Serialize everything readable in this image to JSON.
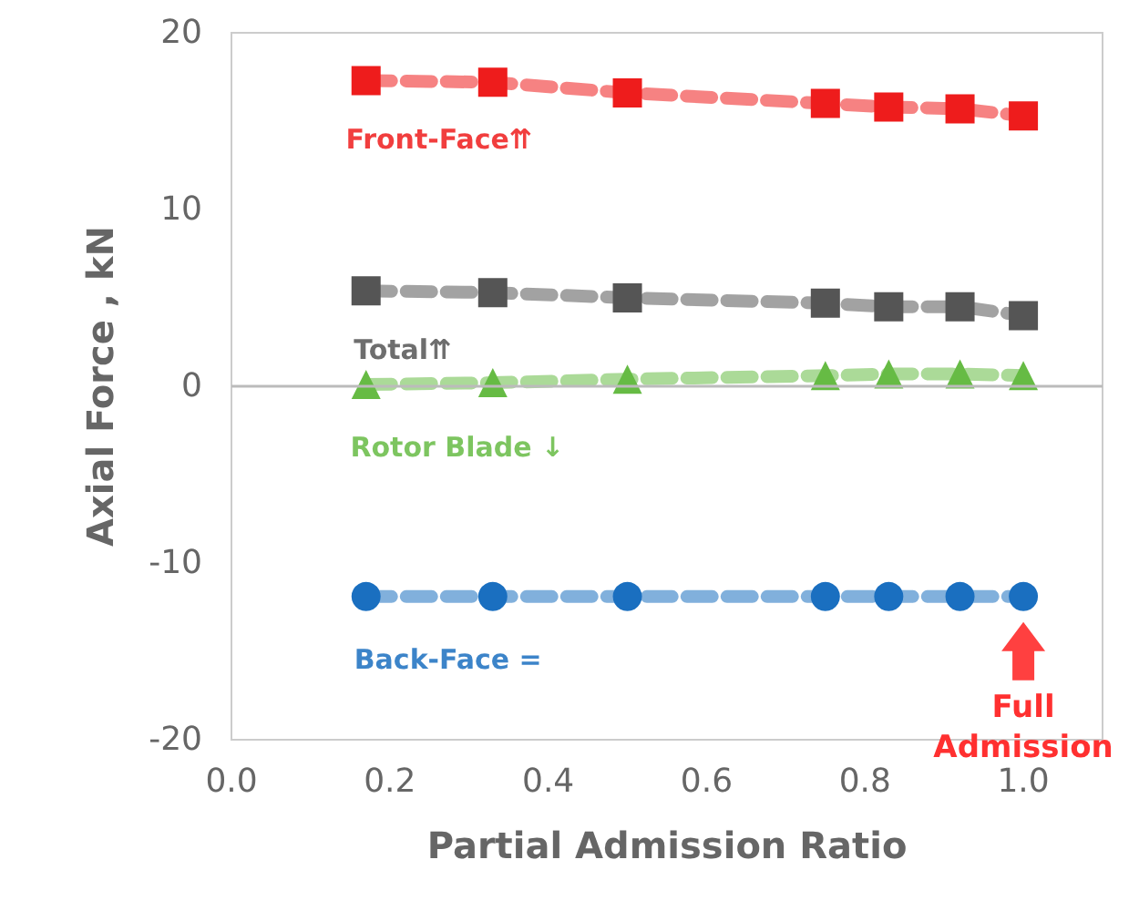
{
  "chart_data": {
    "type": "line",
    "xlabel": "Partial Admission Ratio",
    "ylabel": "Axial Force , kN",
    "x": [
      0.17,
      0.33,
      0.5,
      0.75,
      0.83,
      0.92,
      1.0
    ],
    "series": [
      {
        "name": "Front-Face⇈",
        "color": "#ee1c1c",
        "marker": "square",
        "values": [
          17.3,
          17.2,
          16.6,
          16.0,
          15.8,
          15.7,
          15.3
        ]
      },
      {
        "name": "Total⇈",
        "color": "#555555",
        "marker": "square",
        "values": [
          5.4,
          5.3,
          5.0,
          4.7,
          4.5,
          4.5,
          4.0
        ]
      },
      {
        "name": "Rotor Blade ↓",
        "color": "#66bb44",
        "marker": "triangle",
        "values": [
          0.1,
          0.2,
          0.4,
          0.6,
          0.7,
          0.7,
          0.6
        ]
      },
      {
        "name": "Back-Face =",
        "color": "#1a6fc0",
        "marker": "circle",
        "values": [
          -11.9,
          -11.9,
          -11.9,
          -11.9,
          -11.9,
          -11.9,
          -11.9
        ]
      }
    ],
    "line_style": "dashed",
    "xlim": [
      0,
      1.1
    ],
    "xticks": [
      {
        "value": 0,
        "label": "0.0"
      },
      {
        "value": 0.2,
        "label": "0.2"
      },
      {
        "value": 0.4,
        "label": "0.4"
      },
      {
        "value": 0.6,
        "label": "0.6"
      },
      {
        "value": 0.8,
        "label": "0.8"
      },
      {
        "value": 1.0,
        "label": "1.0"
      }
    ],
    "ylim": [
      -20,
      20
    ],
    "yticks": [
      -20,
      -10,
      0,
      10,
      20
    ],
    "ref_lines": [
      {
        "axis": "y",
        "value": 0,
        "color": "#bbbbbb"
      }
    ],
    "annotations": [
      {
        "text": "Full\nAdmission",
        "x": 1.0,
        "y": -11.9
      }
    ],
    "grid": false,
    "legend": false
  }
}
